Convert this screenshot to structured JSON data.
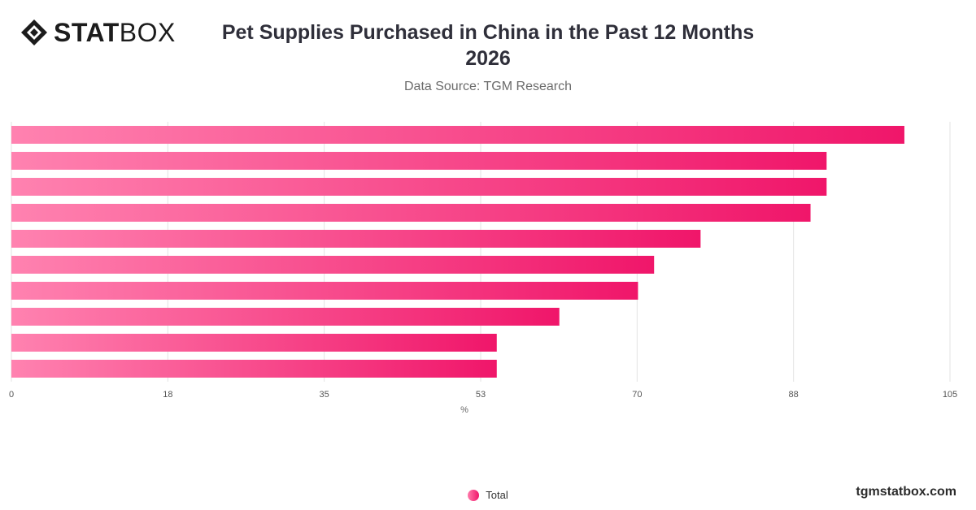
{
  "brand": {
    "logo_bold": "STAT",
    "logo_light": "BOX",
    "logo_icon": "diamond-logo-icon",
    "footer_url": "tgmstatbox.com"
  },
  "header": {
    "title_line1": "Pet Supplies Purchased in China in the Past 12 Months",
    "title_line2": "2026",
    "subtitle": "Data Source: TGM Research"
  },
  "colors": {
    "bar_start": "#ff82b0",
    "bar_end": "#f0166a",
    "grid": "#e3e3e3"
  },
  "chart_data": {
    "type": "bar",
    "orientation": "horizontal",
    "categories": [
      "",
      "",
      "",
      "",
      "",
      "",
      "",
      "",
      "",
      ""
    ],
    "series": [
      {
        "name": "Total",
        "values": [
          99.9,
          91.2,
          91.2,
          89.4,
          77.1,
          71.9,
          70.1,
          61.3,
          54.3,
          54.3
        ]
      }
    ],
    "xticks": [
      "0",
      "18",
      "35",
      "53",
      "70",
      "88",
      "105"
    ],
    "xlim": [
      0,
      105
    ],
    "xlabel": "%",
    "grid": true,
    "legend_position": "bottom-center"
  }
}
